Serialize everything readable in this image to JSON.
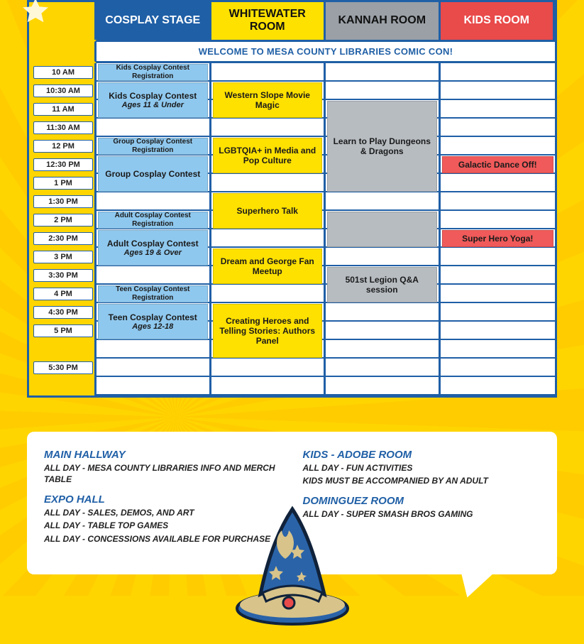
{
  "layout": {
    "starColor": "#fff8d8",
    "rowHeightPx": 26,
    "nSlots": 18,
    "colors": {
      "border": "#1f5fa6",
      "bg": "#ffd500",
      "hdr_cosplay": "#1f5fa6",
      "hdr_white": "#ffe100",
      "hdr_kannah": "#9aa0a6",
      "hdr_kids": "#e94a4a",
      "ev_blue": "#8fc8ee",
      "ev_yellow": "#ffe100",
      "ev_grey": "#b7bcc1",
      "ev_red": "#f05a5a"
    }
  },
  "header": {
    "cols": [
      {
        "label": "COSPLAY STAGE",
        "cls": "hdr-cosplay"
      },
      {
        "label": "WHITEWATER ROOM",
        "cls": "hdr-white"
      },
      {
        "label": "KANNAH ROOM",
        "cls": "hdr-kannah"
      },
      {
        "label": "KIDS ROOM",
        "cls": "hdr-kids"
      }
    ],
    "welcome": "WELCOME TO MESA COUNTY LIBRARIES COMIC CON!"
  },
  "times": [
    {
      "slot": 0,
      "label": "10 AM"
    },
    {
      "slot": 1,
      "label": "10:30 AM"
    },
    {
      "slot": 2,
      "label": "11 AM"
    },
    {
      "slot": 3,
      "label": "11:30 AM"
    },
    {
      "slot": 4,
      "label": "12 PM"
    },
    {
      "slot": 5,
      "label": "12:30 PM"
    },
    {
      "slot": 6,
      "label": "1 PM"
    },
    {
      "slot": 7,
      "label": "1:30 PM"
    },
    {
      "slot": 8,
      "label": "2 PM"
    },
    {
      "slot": 9,
      "label": "2:30 PM"
    },
    {
      "slot": 10,
      "label": "3 PM"
    },
    {
      "slot": 11,
      "label": "3:30 PM"
    },
    {
      "slot": 12,
      "label": "4 PM"
    },
    {
      "slot": 13,
      "label": "4:30 PM"
    },
    {
      "slot": 14,
      "label": "5 PM"
    },
    {
      "slot": 16,
      "label": "5:30 PM"
    }
  ],
  "columns": {
    "cosplay": [
      {
        "start": 0,
        "span": 1,
        "cls": "ev-blue ev-blue-sm",
        "title": "Kids Cosplay Contest Registration"
      },
      {
        "start": 1,
        "span": 2,
        "cls": "ev-blue",
        "title": "Kids Cosplay Contest",
        "sub": "Ages 11 & Under"
      },
      {
        "start": 4,
        "span": 1,
        "cls": "ev-blue ev-blue-sm",
        "title": "Group Cosplay Contest Registration"
      },
      {
        "start": 5,
        "span": 2,
        "cls": "ev-blue",
        "title": "Group Cosplay Contest"
      },
      {
        "start": 8,
        "span": 1,
        "cls": "ev-blue ev-blue-sm",
        "title": "Adult Cosplay Contest Registration"
      },
      {
        "start": 9,
        "span": 2,
        "cls": "ev-blue",
        "title": "Adult Cosplay Contest",
        "sub": "Ages 19 & Over"
      },
      {
        "start": 12,
        "span": 1,
        "cls": "ev-blue ev-blue-sm",
        "title": "Teen Cosplay Contest Registration"
      },
      {
        "start": 13,
        "span": 2,
        "cls": "ev-blue",
        "title": "Teen Cosplay Contest",
        "sub": "Ages 12-18"
      }
    ],
    "whitewater": [
      {
        "start": 1,
        "span": 2,
        "cls": "ev-yellow",
        "title": "Western Slope Movie Magic"
      },
      {
        "start": 4,
        "span": 2,
        "cls": "ev-yellow",
        "title": "LGBTQIA+ in Media and Pop Culture"
      },
      {
        "start": 7,
        "span": 2,
        "cls": "ev-yellow",
        "title": "Superhero Talk"
      },
      {
        "start": 10,
        "span": 2,
        "cls": "ev-yellow",
        "title": "Dream and George Fan Meetup"
      },
      {
        "start": 13,
        "span": 3,
        "cls": "ev-yellow",
        "title": "Creating Heroes and Telling Stories: Authors Panel"
      }
    ],
    "kannah": [
      {
        "start": 2,
        "span": 5,
        "cls": "ev-grey",
        "title": "Learn to Play Dungeons & Dragons"
      },
      {
        "start": 8,
        "span": 2,
        "cls": "ev-grey",
        "title": ""
      },
      {
        "start": 11,
        "span": 2,
        "cls": "ev-grey",
        "title": "501st Legion Q&A session"
      }
    ],
    "kids": [
      {
        "start": 5,
        "span": 1,
        "cls": "ev-red",
        "title": "Galactic Dance Off!"
      },
      {
        "start": 9,
        "span": 1,
        "cls": "ev-red",
        "title": "Super Hero Yoga!"
      }
    ]
  },
  "info": {
    "left": [
      {
        "heading": "MAIN HALLWAY",
        "lines": [
          "ALL DAY - MESA COUNTY LIBRARIES INFO AND MERCH TABLE"
        ]
      },
      {
        "heading": "EXPO HALL",
        "lines": [
          "ALL DAY - SALES, DEMOS, AND ART",
          "ALL DAY - TABLE TOP GAMES",
          "ALL DAY - CONCESSIONS AVAILABLE FOR PURCHASE"
        ]
      }
    ],
    "right": [
      {
        "heading": "KIDS - ADOBE ROOM",
        "lines": [
          "ALL DAY - FUN ACTIVITIES",
          "KIDS MUST BE ACCOMPANIED BY AN ADULT"
        ]
      },
      {
        "heading": "DOMINGUEZ ROOM",
        "lines": [
          "ALL DAY - SUPER SMASH BROS GAMING"
        ]
      }
    ]
  }
}
